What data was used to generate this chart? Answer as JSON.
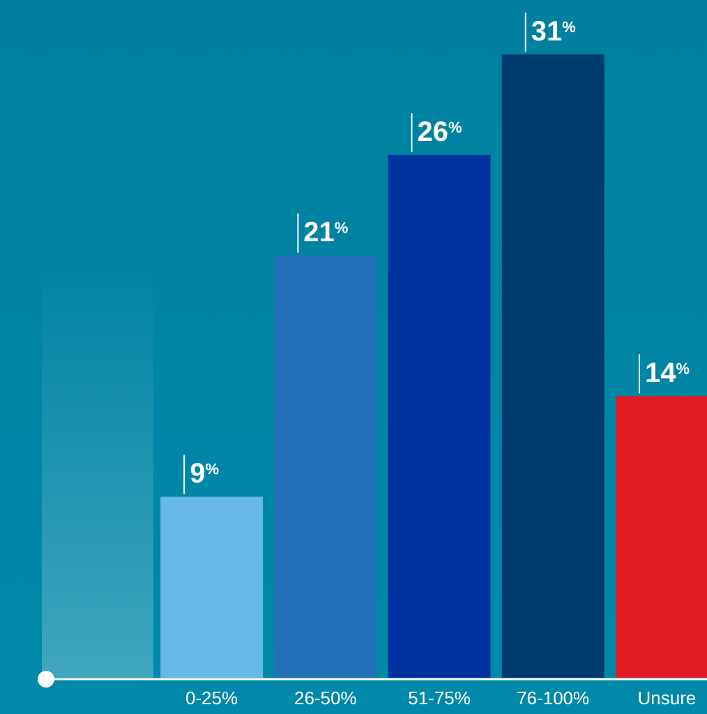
{
  "chart_data": {
    "type": "bar",
    "categories": [
      "0-25%",
      "26-50%",
      "51-75%",
      "76-100%",
      "Unsure"
    ],
    "values": [
      9,
      21,
      26,
      31,
      14
    ],
    "colors": [
      "#66b8e6",
      "#2270b8",
      "#0033a0",
      "#003c6e",
      "#e01b22"
    ],
    "data_labels": true,
    "value_labels": [
      "9$^{%}$",
      "21$^{%}$",
      "26$^{%}$",
      "31$^{%}$",
      "14$^{%}$"
    ]
  }
}
